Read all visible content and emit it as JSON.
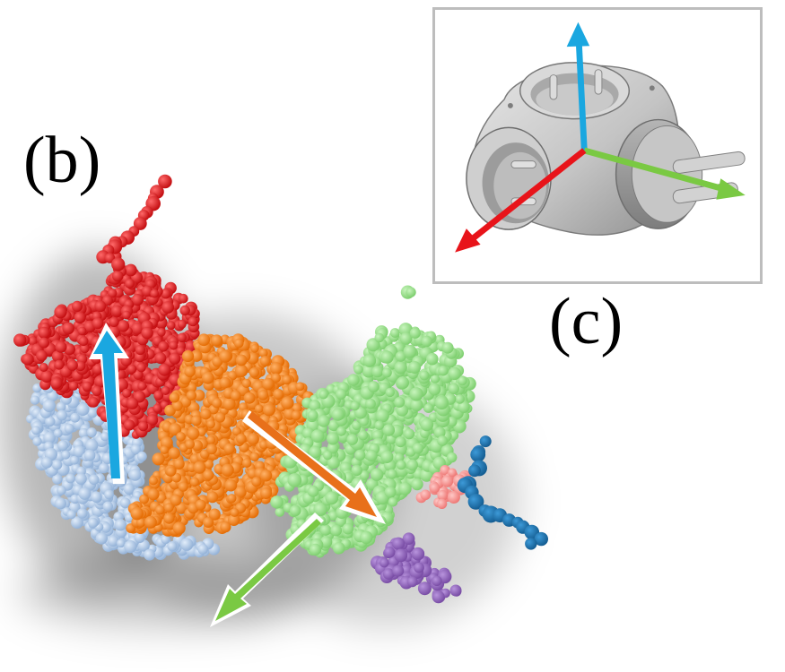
{
  "panels": {
    "b_label": "(b)",
    "c_label": "(c)"
  },
  "colors": {
    "red_part": "#e01e1e",
    "orange_part": "#ff7f0e",
    "green_part": "#98df8a",
    "light_blue_part": "#aec7e8",
    "dark_blue_part": "#1f77b4",
    "pink_part": "#ff9896",
    "purple_part": "#9467bd",
    "axis_blue": "#1aa7e0",
    "axis_green": "#7ac943",
    "axis_red": "#e8141a",
    "axis_orange": "#e8701a",
    "inset_border": "#bdbdbd",
    "object_gray": "#c8c8c8"
  },
  "icons": [
    "point-cloud",
    "principal-axis-arrow",
    "power-adapter-mesh"
  ]
}
